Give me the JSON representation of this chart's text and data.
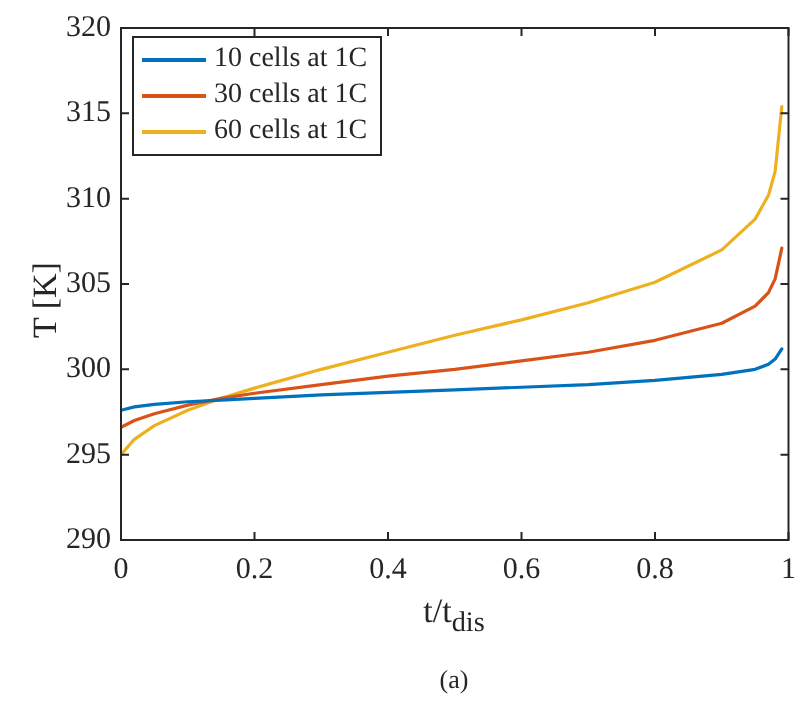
{
  "chart_data": {
    "type": "line",
    "xlabel": "t/t$_{dis}$",
    "ylabel": "T [K]",
    "annotations": [
      "(a)"
    ],
    "x": [
      0,
      0.02,
      0.05,
      0.1,
      0.15,
      0.2,
      0.3,
      0.4,
      0.5,
      0.6,
      0.7,
      0.8,
      0.9,
      0.95,
      0.97,
      0.98,
      0.99
    ],
    "series": [
      {
        "name": "10 cells at 1C",
        "color": "#0072bd",
        "values": [
          297.6,
          297.8,
          297.95,
          298.1,
          298.2,
          298.3,
          298.5,
          298.65,
          298.8,
          298.95,
          299.1,
          299.35,
          299.7,
          300.0,
          300.3,
          300.6,
          301.2
        ]
      },
      {
        "name": "30 cells at 1C",
        "color": "#d95319",
        "values": [
          296.6,
          297.0,
          297.4,
          297.9,
          298.3,
          298.6,
          299.1,
          299.6,
          300.0,
          300.5,
          301.0,
          301.7,
          302.7,
          303.7,
          304.5,
          305.3,
          307.1
        ]
      },
      {
        "name": "60 cells at 1C",
        "color": "#edb120",
        "values": [
          295.0,
          295.9,
          296.7,
          297.6,
          298.3,
          298.9,
          300.0,
          301.0,
          302.0,
          302.9,
          303.9,
          305.1,
          307.0,
          308.8,
          310.2,
          311.6,
          315.4
        ]
      }
    ],
    "xlim": [
      0,
      1
    ],
    "xticks": [
      0,
      0.2,
      0.4,
      0.6,
      0.8,
      1
    ],
    "ylim": [
      290,
      320
    ],
    "yticks": [
      290,
      295,
      300,
      305,
      310,
      315,
      320
    ],
    "grid": false,
    "legend": "top left",
    "marker": "none",
    "line_style": "solid"
  }
}
